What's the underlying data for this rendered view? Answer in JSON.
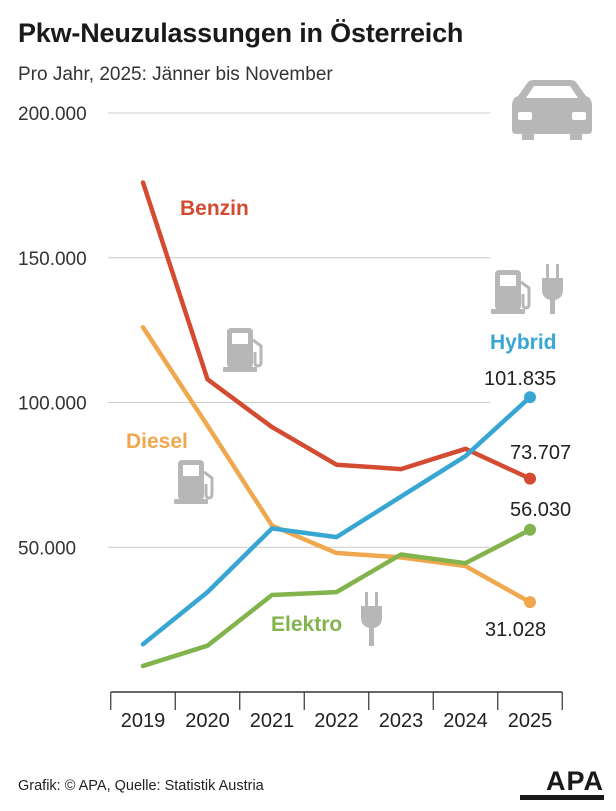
{
  "header": {
    "title": "Pkw-Neuzulassungen in Österreich",
    "subtitle": "Pro Jahr, 2025: Jänner bis November"
  },
  "footer": {
    "source": "Grafik: © APA, Quelle: Statistik Austria",
    "logo": "APA"
  },
  "colors": {
    "Benzin": "#d34b30",
    "Diesel": "#f0a84e",
    "Hybrid": "#38a6d3",
    "Elektro": "#82b34d",
    "grid": "#cccccc",
    "icon": "#b7b7b7"
  },
  "icons": [
    "car-icon",
    "fuel-pump-icon",
    "plug-icon"
  ],
  "chart_data": {
    "type": "line",
    "title": "Pkw-Neuzulassungen in Österreich",
    "subtitle": "Pro Jahr, 2025: Jänner bis November",
    "categories": [
      "2019",
      "2020",
      "2021",
      "2022",
      "2023",
      "2024",
      "2025"
    ],
    "y_ticks": [
      {
        "value": 50000,
        "label": "50.000"
      },
      {
        "value": 100000,
        "label": "100.000"
      },
      {
        "value": 150000,
        "label": "150.000"
      },
      {
        "value": 200000,
        "label": "200.000"
      }
    ],
    "ylim": [
      0,
      200000
    ],
    "grid": true,
    "series": [
      {
        "name": "Benzin",
        "values": [
          176000,
          108000,
          91500,
          78500,
          77000,
          84000,
          73707
        ]
      },
      {
        "name": "Diesel",
        "values": [
          126000,
          92000,
          57500,
          48000,
          46500,
          43500,
          31028
        ]
      },
      {
        "name": "Hybrid",
        "values": [
          16500,
          34500,
          56500,
          53500,
          67500,
          81500,
          101835
        ]
      },
      {
        "name": "Elektro",
        "values": [
          9000,
          16000,
          33500,
          34500,
          47500,
          44500,
          56030
        ]
      }
    ],
    "end_labels": [
      {
        "series": "Hybrid",
        "label": "101.835"
      },
      {
        "series": "Benzin",
        "label": "73.707"
      },
      {
        "series": "Elektro",
        "label": "56.030"
      },
      {
        "series": "Diesel",
        "label": "31.028"
      }
    ]
  }
}
